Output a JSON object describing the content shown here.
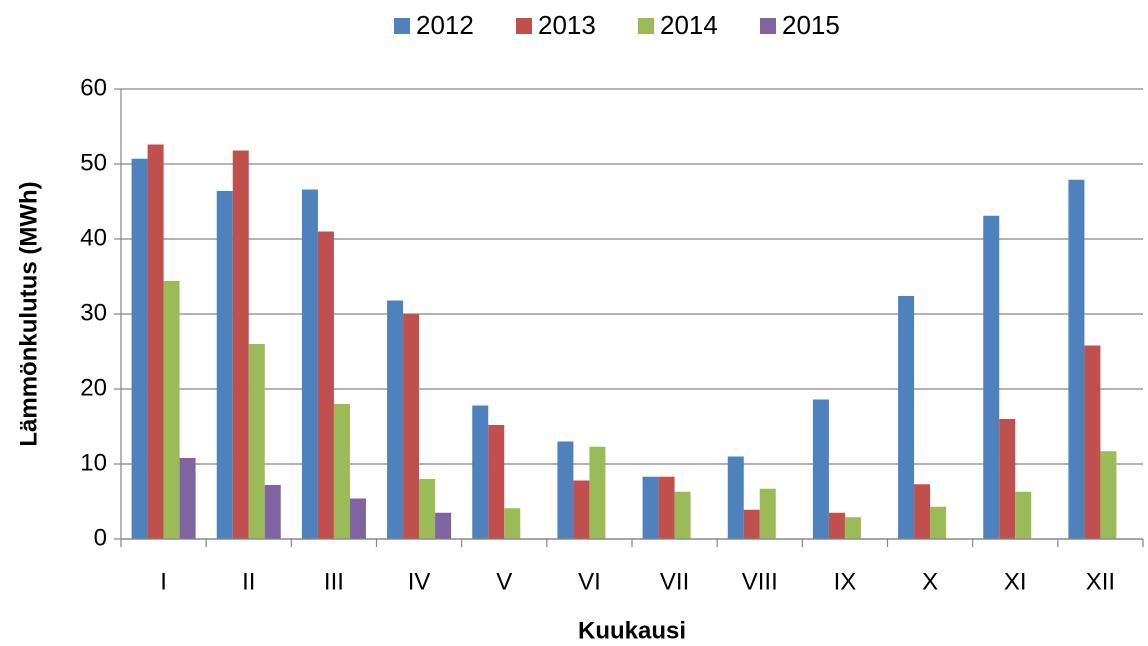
{
  "chart_data": {
    "type": "bar",
    "y_label": "Lämmönkulutus (MWh)",
    "x_label": "Kuukausi",
    "categories": [
      "I",
      "II",
      "III",
      "IV",
      "V",
      "VI",
      "VII",
      "VIII",
      "IX",
      "X",
      "XI",
      "XII"
    ],
    "series": [
      {
        "name": "2012",
        "color": "#4f81bd",
        "values": [
          50.7,
          46.4,
          46.6,
          31.8,
          17.8,
          13.0,
          8.3,
          11.0,
          18.6,
          32.4,
          43.1,
          47.9
        ]
      },
      {
        "name": "2013",
        "color": "#c0504d",
        "values": [
          52.6,
          51.8,
          41.0,
          30.0,
          15.2,
          7.8,
          8.3,
          3.9,
          3.5,
          7.3,
          16.0,
          25.8
        ]
      },
      {
        "name": "2014",
        "color": "#9bbb59",
        "values": [
          34.4,
          26.0,
          18.0,
          8.0,
          4.1,
          12.3,
          6.3,
          6.7,
          2.9,
          4.3,
          6.3,
          11.7
        ]
      },
      {
        "name": "2015",
        "color": "#8064a2",
        "values": [
          10.8,
          7.2,
          5.4,
          3.5,
          null,
          null,
          null,
          null,
          null,
          null,
          null,
          null
        ]
      }
    ],
    "ylim": [
      0,
      60
    ],
    "yticks": [
      0,
      10,
      20,
      30,
      40,
      50,
      60
    ],
    "grid": true,
    "legend": "top"
  }
}
